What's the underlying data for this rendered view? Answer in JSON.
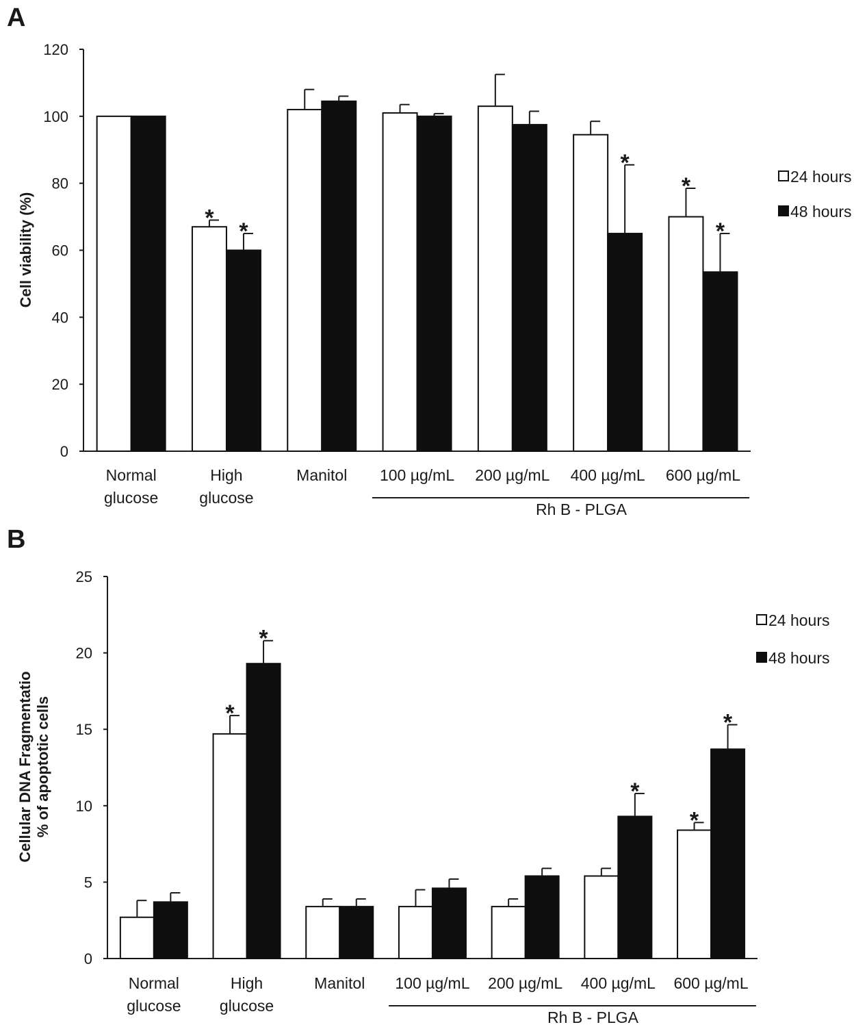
{
  "chart_data": [
    {
      "type": "bar",
      "panel_label": "A",
      "title": "",
      "xlabel": "",
      "ylabel": "Cell viability (%)",
      "ylim": [
        0,
        120
      ],
      "yticks": [
        0,
        20,
        40,
        60,
        80,
        100,
        120
      ],
      "categories": [
        [
          "Normal",
          "glucose"
        ],
        [
          "High",
          "glucose"
        ],
        [
          "Manitol"
        ],
        [
          "100 µg/mL"
        ],
        [
          "200 µg/mL"
        ],
        [
          "400 µg/mL"
        ],
        [
          "600 µg/mL"
        ]
      ],
      "group_label": "Rh B - PLGA",
      "group_range": [
        3,
        6
      ],
      "legend_position": "right",
      "series": [
        {
          "name": "24 hours",
          "color": "#ffffff",
          "values": [
            100,
            67,
            102,
            101,
            103,
            94.5,
            70
          ],
          "errors": [
            0,
            2,
            6,
            2.5,
            9.5,
            4,
            8.5
          ],
          "significant": [
            false,
            true,
            false,
            false,
            false,
            false,
            true
          ]
        },
        {
          "name": "48 hours",
          "color": "#0f0f0f",
          "values": [
            100,
            60,
            104.5,
            100,
            97.5,
            65,
            53.5
          ],
          "errors": [
            0,
            5,
            1.5,
            0.8,
            4,
            20.5,
            11.5
          ],
          "significant": [
            false,
            true,
            false,
            false,
            false,
            true,
            true
          ]
        }
      ],
      "annotation_symbol": "*"
    },
    {
      "type": "bar",
      "panel_label": "B",
      "title": "",
      "xlabel": "",
      "ylabel": [
        "Cellular DNA Fragmentatio",
        "% of apoptotic cells"
      ],
      "ylim": [
        0,
        25
      ],
      "yticks": [
        0,
        5,
        10,
        15,
        20,
        25
      ],
      "categories": [
        [
          "Normal",
          "glucose"
        ],
        [
          "High",
          "glucose"
        ],
        [
          "Manitol"
        ],
        [
          "100 µg/mL"
        ],
        [
          "200 µg/mL"
        ],
        [
          "400 µg/mL"
        ],
        [
          "600 µg/mL"
        ]
      ],
      "group_label": "Rh B - PLGA",
      "group_range": [
        3,
        6
      ],
      "legend_position": "top-right",
      "series": [
        {
          "name": "24 hours",
          "color": "#ffffff",
          "values": [
            2.7,
            14.7,
            3.4,
            3.4,
            3.4,
            5.4,
            8.4
          ],
          "errors": [
            1.1,
            1.2,
            0.5,
            1.1,
            0.5,
            0.5,
            0.5
          ],
          "significant": [
            false,
            true,
            false,
            false,
            false,
            false,
            true
          ]
        },
        {
          "name": "48 hours",
          "color": "#0f0f0f",
          "values": [
            3.7,
            19.3,
            3.4,
            4.6,
            5.4,
            9.3,
            13.7
          ],
          "errors": [
            0.6,
            1.5,
            0.5,
            0.6,
            0.5,
            1.5,
            1.6
          ],
          "significant": [
            false,
            true,
            false,
            false,
            false,
            true,
            true
          ]
        }
      ],
      "annotation_symbol": "*"
    }
  ]
}
